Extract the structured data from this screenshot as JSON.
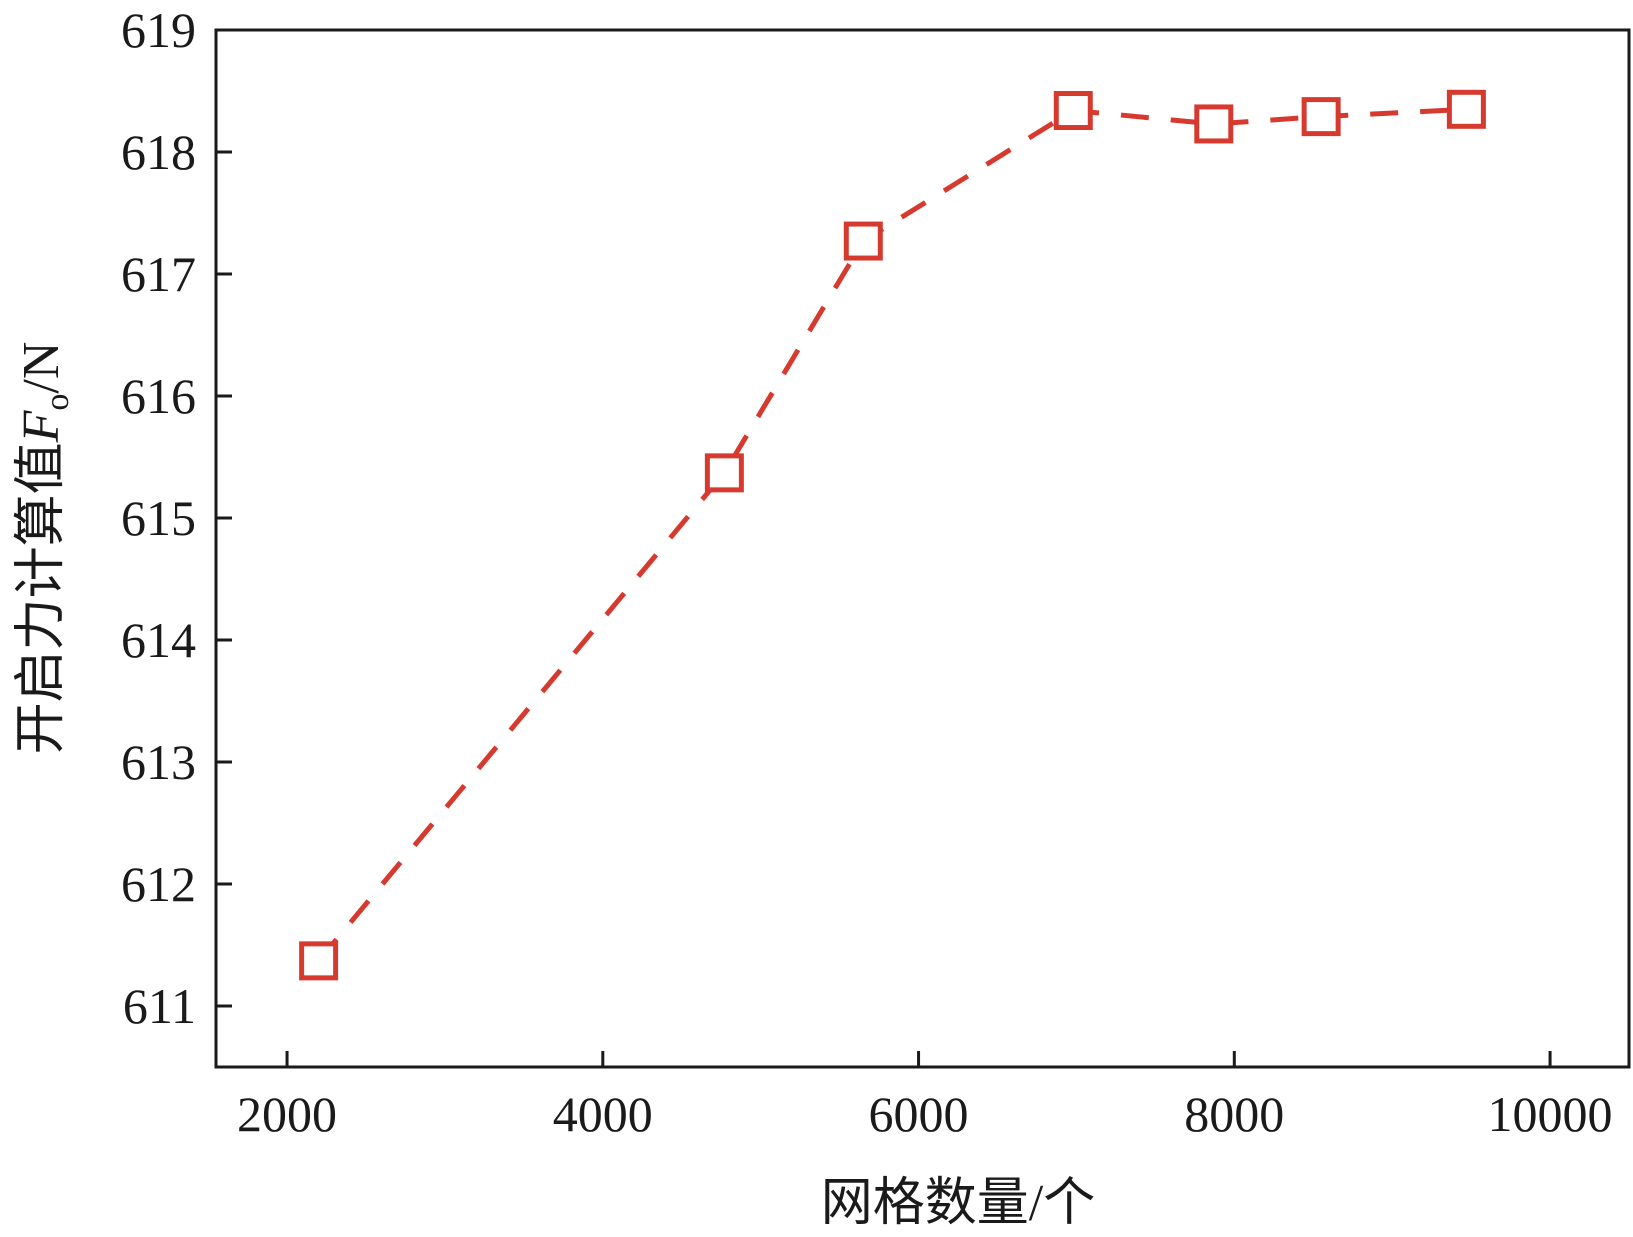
{
  "chart_data": {
    "type": "line",
    "title": "",
    "xlabel": "网格数量/个",
    "ylabel_main": "开启力计算值",
    "ylabel_symbol": "F",
    "ylabel_subscript": "o",
    "ylabel_unit": "/N",
    "xlim": [
      1550,
      10500
    ],
    "ylim": [
      610.5,
      619
    ],
    "x_ticks": [
      2000,
      4000,
      6000,
      8000,
      10000
    ],
    "y_ticks": [
      611,
      612,
      613,
      614,
      615,
      616,
      617,
      618,
      619
    ],
    "grid": false,
    "legend": "none",
    "series": [
      {
        "color": "#d63a2f",
        "line_style": "dashed",
        "marker": "open-square",
        "x": [
          2200,
          4770,
          5650,
          6980,
          7870,
          8550,
          9470
        ],
        "y": [
          611.37,
          615.37,
          617.27,
          618.34,
          618.23,
          618.29,
          618.35
        ]
      }
    ]
  }
}
